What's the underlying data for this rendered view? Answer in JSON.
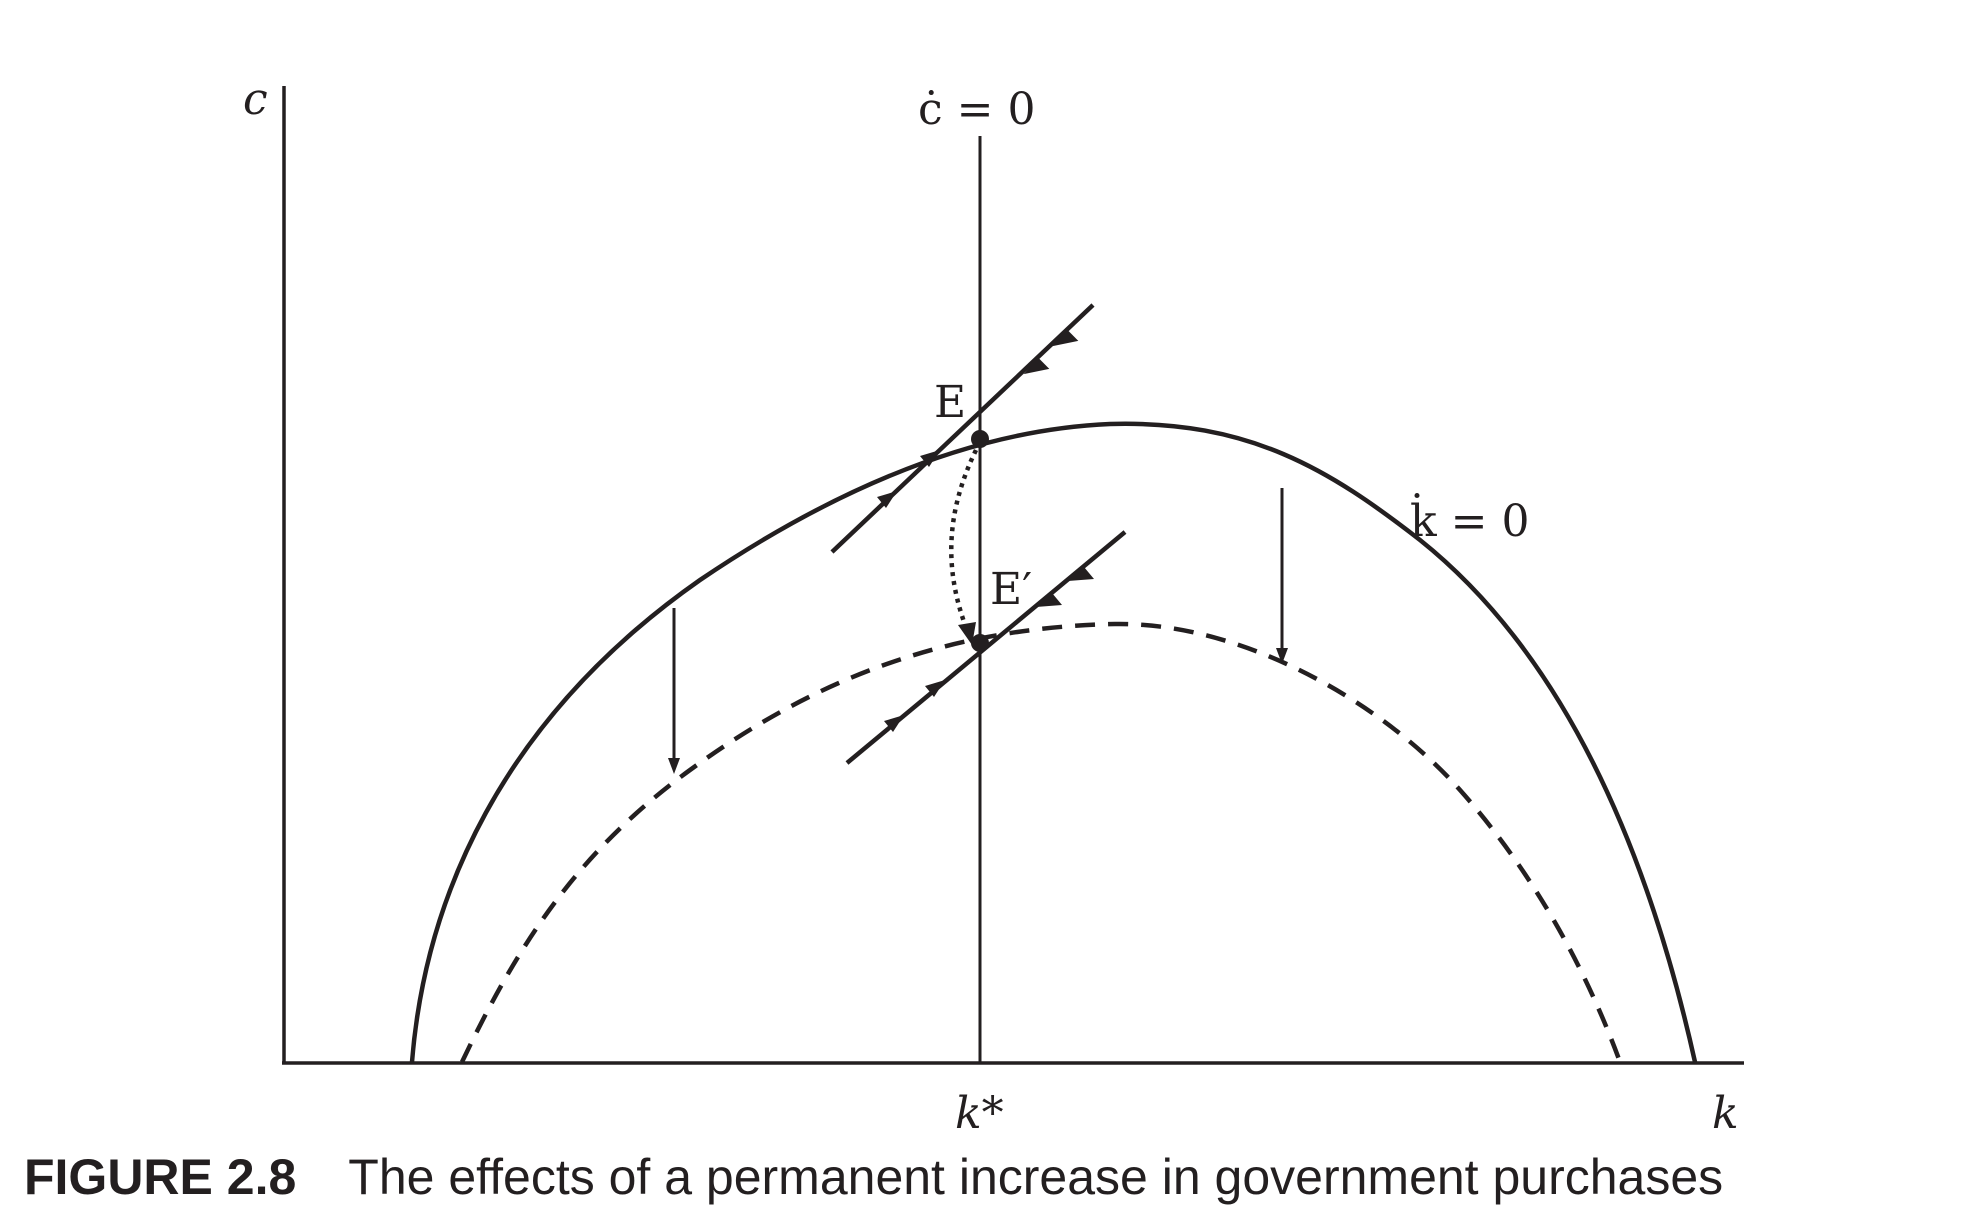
{
  "diagram": {
    "axis_y_label": "c",
    "axis_x_label": "k",
    "k_star_label": "k*",
    "c_dot_label": "ċ = 0",
    "k_dot_label": "k̇ = 0",
    "point_E_label": "E",
    "point_E_prime_label": "E′",
    "curve_original": "solid",
    "curve_new": "dashed",
    "transition_path": "dotted",
    "ink_color": "#231f20"
  },
  "caption": {
    "number": "FIGURE 2.8",
    "title": "The effects of a permanent increase in government purchases"
  }
}
